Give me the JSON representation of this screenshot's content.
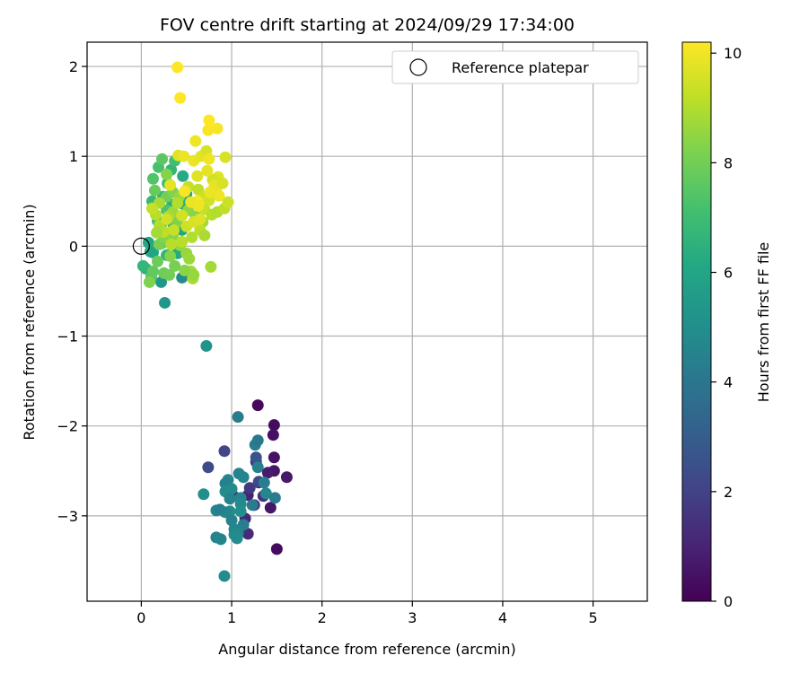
{
  "chart_data": {
    "type": "scatter",
    "title": "FOV centre drift starting at 2024/09/29 17:34:00",
    "xlabel": "Angular distance from reference (arcmin)",
    "ylabel": "Rotation from reference (arcmin)",
    "xlim": [
      -0.6,
      5.6
    ],
    "ylim": [
      -3.95,
      2.27
    ],
    "xticks": [
      "0",
      "1",
      "2",
      "3",
      "4",
      "5"
    ],
    "yticks": [
      "2",
      "1",
      "0",
      "−1",
      "−2",
      "−3"
    ],
    "grid": true,
    "legend": {
      "placement": "top-right",
      "entries": [
        "Reference platepar"
      ]
    },
    "reference_point": {
      "x": 0,
      "y": 0
    },
    "colorbar": {
      "label": "Hours from first FF file",
      "range": [
        0,
        10.2
      ],
      "ticks": [
        "0",
        "2",
        "4",
        "6",
        "8",
        "10"
      ],
      "colormap": "viridis"
    },
    "points": [
      {
        "x": 1.29,
        "y": -1.77,
        "c": 0.2
      },
      {
        "x": 1.47,
        "y": -1.99,
        "c": 0.3
      },
      {
        "x": 1.46,
        "y": -2.1,
        "c": 0.4
      },
      {
        "x": 1.47,
        "y": -2.35,
        "c": 0.5
      },
      {
        "x": 1.47,
        "y": -2.5,
        "c": 0.6
      },
      {
        "x": 1.61,
        "y": -2.57,
        "c": 0.7
      },
      {
        "x": 1.4,
        "y": -2.52,
        "c": 0.8
      },
      {
        "x": 1.3,
        "y": -2.63,
        "c": 0.9
      },
      {
        "x": 1.18,
        "y": -2.77,
        "c": 1.0
      },
      {
        "x": 1.15,
        "y": -3.03,
        "c": 1.1
      },
      {
        "x": 1.18,
        "y": -3.2,
        "c": 1.2
      },
      {
        "x": 1.5,
        "y": -3.37,
        "c": 0.3
      },
      {
        "x": 1.43,
        "y": -2.91,
        "c": 0.6
      },
      {
        "x": 1.25,
        "y": -2.88,
        "c": 1.3
      },
      {
        "x": 1.02,
        "y": -2.78,
        "c": 1.4
      },
      {
        "x": 1.27,
        "y": -2.4,
        "c": 1.6
      },
      {
        "x": 1.2,
        "y": -2.69,
        "c": 1.7
      },
      {
        "x": 1.35,
        "y": -2.78,
        "c": 1.5
      },
      {
        "x": 0.92,
        "y": -2.28,
        "c": 2.1
      },
      {
        "x": 0.74,
        "y": -2.46,
        "c": 2.3
      },
      {
        "x": 1.27,
        "y": -2.35,
        "c": 2.6
      },
      {
        "x": 1.3,
        "y": -2.62,
        "c": 2.2
      },
      {
        "x": 1.07,
        "y": -1.9,
        "c": 4.2
      },
      {
        "x": 1.26,
        "y": -2.21,
        "c": 4.3
      },
      {
        "x": 1.29,
        "y": -2.16,
        "c": 4.1
      },
      {
        "x": 1.29,
        "y": -2.46,
        "c": 4.4
      },
      {
        "x": 1.08,
        "y": -2.53,
        "c": 4.5
      },
      {
        "x": 1.13,
        "y": -2.57,
        "c": 4.6
      },
      {
        "x": 0.96,
        "y": -2.6,
        "c": 4.7
      },
      {
        "x": 0.93,
        "y": -2.64,
        "c": 4.4
      },
      {
        "x": 1.0,
        "y": -2.7,
        "c": 4.8
      },
      {
        "x": 0.93,
        "y": -2.73,
        "c": 4.9
      },
      {
        "x": 0.69,
        "y": -2.76,
        "c": 5.0
      },
      {
        "x": 0.98,
        "y": -2.81,
        "c": 4.5
      },
      {
        "x": 1.1,
        "y": -2.8,
        "c": 4.6
      },
      {
        "x": 1.36,
        "y": -2.63,
        "c": 4.3
      },
      {
        "x": 1.38,
        "y": -2.75,
        "c": 4.7
      },
      {
        "x": 1.48,
        "y": -2.8,
        "c": 4.2
      },
      {
        "x": 1.1,
        "y": -2.87,
        "c": 4.8
      },
      {
        "x": 1.1,
        "y": -2.95,
        "c": 5.0
      },
      {
        "x": 0.98,
        "y": -2.95,
        "c": 4.9
      },
      {
        "x": 0.93,
        "y": -2.96,
        "c": 4.6
      },
      {
        "x": 0.83,
        "y": -2.94,
        "c": 4.7
      },
      {
        "x": 0.87,
        "y": -2.93,
        "c": 4.4
      },
      {
        "x": 1.0,
        "y": -3.05,
        "c": 4.5
      },
      {
        "x": 1.13,
        "y": -3.1,
        "c": 4.3
      },
      {
        "x": 1.03,
        "y": -3.15,
        "c": 4.6
      },
      {
        "x": 1.07,
        "y": -3.19,
        "c": 4.7
      },
      {
        "x": 1.03,
        "y": -3.21,
        "c": 4.8
      },
      {
        "x": 1.06,
        "y": -3.25,
        "c": 4.9
      },
      {
        "x": 0.83,
        "y": -3.24,
        "c": 4.5
      },
      {
        "x": 0.88,
        "y": -3.26,
        "c": 4.6
      },
      {
        "x": 0.92,
        "y": -3.67,
        "c": 4.9
      },
      {
        "x": 1.23,
        "y": -2.88,
        "c": 4.2
      },
      {
        "x": 0.72,
        "y": -1.11,
        "c": 5.2
      },
      {
        "x": 0.26,
        "y": -0.63,
        "c": 5.3
      },
      {
        "x": 0.45,
        "y": -0.35,
        "c": 4.9
      },
      {
        "x": 0.22,
        "y": -0.4,
        "c": 5.4
      },
      {
        "x": 0.05,
        "y": -0.25,
        "c": 6.5
      },
      {
        "x": 0.02,
        "y": -0.22,
        "c": 6.7
      },
      {
        "x": 0.1,
        "y": -0.06,
        "c": 6.3
      },
      {
        "x": 0.13,
        "y": -0.07,
        "c": 6.0
      },
      {
        "x": 0.08,
        "y": 0.04,
        "c": 6.1
      },
      {
        "x": 0.22,
        "y": 0.03,
        "c": 6.4
      },
      {
        "x": 0.28,
        "y": -0.1,
        "c": 6.6
      },
      {
        "x": 0.4,
        "y": -0.08,
        "c": 6.2
      },
      {
        "x": 0.31,
        "y": 0.08,
        "c": 6.8
      },
      {
        "x": 0.22,
        "y": 0.2,
        "c": 6.5
      },
      {
        "x": 0.45,
        "y": 0.18,
        "c": 6.0
      },
      {
        "x": 0.35,
        "y": 0.25,
        "c": 6.9
      },
      {
        "x": 0.18,
        "y": 0.28,
        "c": 7.0
      },
      {
        "x": 0.12,
        "y": 0.5,
        "c": 6.8
      },
      {
        "x": 0.24,
        "y": 0.55,
        "c": 6.6
      },
      {
        "x": 0.34,
        "y": 0.46,
        "c": 6.3
      },
      {
        "x": 0.46,
        "y": 0.47,
        "c": 6.4
      },
      {
        "x": 0.5,
        "y": 0.58,
        "c": 6.0
      },
      {
        "x": 0.46,
        "y": 0.78,
        "c": 6.2
      },
      {
        "x": 0.33,
        "y": 0.85,
        "c": 6.7
      },
      {
        "x": 0.37,
        "y": 0.95,
        "c": 7.1
      },
      {
        "x": 0.29,
        "y": 0.7,
        "c": 7.0
      },
      {
        "x": 0.19,
        "y": 0.88,
        "c": 7.2
      },
      {
        "x": 0.13,
        "y": 0.75,
        "c": 7.4
      },
      {
        "x": 0.23,
        "y": 0.97,
        "c": 7.6
      },
      {
        "x": 0.15,
        "y": 0.62,
        "c": 7.8
      },
      {
        "x": 0.28,
        "y": 0.4,
        "c": 7.3
      },
      {
        "x": 0.11,
        "y": -0.34,
        "c": 7.5
      },
      {
        "x": 0.13,
        "y": -0.28,
        "c": 7.7
      },
      {
        "x": 0.25,
        "y": -0.3,
        "c": 7.9
      },
      {
        "x": 0.31,
        "y": -0.32,
        "c": 8.0
      },
      {
        "x": 0.09,
        "y": -0.4,
        "c": 8.2
      },
      {
        "x": 0.18,
        "y": -0.17,
        "c": 7.9
      },
      {
        "x": 0.2,
        "y": 0.02,
        "c": 8.1
      },
      {
        "x": 0.25,
        "y": 0.1,
        "c": 8.3
      },
      {
        "x": 0.35,
        "y": 0.12,
        "c": 8.4
      },
      {
        "x": 0.4,
        "y": 0.27,
        "c": 8.2
      },
      {
        "x": 0.43,
        "y": 0.01,
        "c": 8.5
      },
      {
        "x": 0.5,
        "y": -0.08,
        "c": 8.6
      },
      {
        "x": 0.53,
        "y": -0.14,
        "c": 8.7
      },
      {
        "x": 0.55,
        "y": -0.28,
        "c": 8.8
      },
      {
        "x": 0.57,
        "y": -0.36,
        "c": 8.9
      },
      {
        "x": 0.58,
        "y": -0.32,
        "c": 8.6
      },
      {
        "x": 0.48,
        "y": -0.27,
        "c": 8.4
      },
      {
        "x": 0.37,
        "y": -0.22,
        "c": 8.1
      },
      {
        "x": 0.32,
        "y": -0.11,
        "c": 8.3
      },
      {
        "x": 0.77,
        "y": -0.23,
        "c": 8.8
      },
      {
        "x": 0.28,
        "y": 0.55,
        "c": 8.0
      },
      {
        "x": 0.35,
        "y": 0.6,
        "c": 8.2
      },
      {
        "x": 0.42,
        "y": 0.55,
        "c": 8.6
      },
      {
        "x": 0.28,
        "y": 0.8,
        "c": 8.3
      },
      {
        "x": 0.35,
        "y": 0.38,
        "c": 8.7
      },
      {
        "x": 0.3,
        "y": 0.33,
        "c": 8.9
      },
      {
        "x": 0.52,
        "y": 0.4,
        "c": 8.5
      },
      {
        "x": 0.6,
        "y": 0.33,
        "c": 8.4
      },
      {
        "x": 0.68,
        "y": 0.27,
        "c": 8.8
      },
      {
        "x": 0.56,
        "y": 0.1,
        "c": 9.0
      },
      {
        "x": 0.45,
        "y": 0.05,
        "c": 9.1
      },
      {
        "x": 0.65,
        "y": 0.18,
        "c": 9.2
      },
      {
        "x": 0.7,
        "y": 0.12,
        "c": 8.9
      },
      {
        "x": 0.52,
        "y": 0.66,
        "c": 9.3
      },
      {
        "x": 0.63,
        "y": 0.63,
        "c": 9.2
      },
      {
        "x": 0.69,
        "y": 0.55,
        "c": 9.4
      },
      {
        "x": 0.75,
        "y": 0.51,
        "c": 9.5
      },
      {
        "x": 0.7,
        "y": 0.41,
        "c": 9.3
      },
      {
        "x": 0.78,
        "y": 0.35,
        "c": 9.1
      },
      {
        "x": 0.84,
        "y": 0.38,
        "c": 9.0
      },
      {
        "x": 0.92,
        "y": 0.42,
        "c": 9.2
      },
      {
        "x": 0.96,
        "y": 0.49,
        "c": 9.4
      },
      {
        "x": 0.93,
        "y": 0.99,
        "c": 9.6
      },
      {
        "x": 0.85,
        "y": 0.77,
        "c": 9.7
      },
      {
        "x": 0.79,
        "y": 0.74,
        "c": 9.5
      },
      {
        "x": 0.73,
        "y": 0.84,
        "c": 9.8
      },
      {
        "x": 0.62,
        "y": 0.78,
        "c": 9.7
      },
      {
        "x": 0.58,
        "y": 0.95,
        "c": 9.9
      },
      {
        "x": 0.66,
        "y": 1.0,
        "c": 9.8
      },
      {
        "x": 0.72,
        "y": 1.06,
        "c": 9.6
      },
      {
        "x": 0.75,
        "y": 0.97,
        "c": 10.0
      },
      {
        "x": 0.6,
        "y": 1.17,
        "c": 10.0
      },
      {
        "x": 0.74,
        "y": 1.29,
        "c": 10.1
      },
      {
        "x": 0.75,
        "y": 1.4,
        "c": 10.2
      },
      {
        "x": 0.84,
        "y": 1.31,
        "c": 10.1
      },
      {
        "x": 0.43,
        "y": 1.65,
        "c": 10.2
      },
      {
        "x": 0.4,
        "y": 1.99,
        "c": 10.2
      },
      {
        "x": 0.41,
        "y": 1.01,
        "c": 9.7
      },
      {
        "x": 0.47,
        "y": 1.0,
        "c": 9.9
      },
      {
        "x": 0.83,
        "y": 0.61,
        "c": 10.0
      },
      {
        "x": 0.81,
        "y": 0.68,
        "c": 9.8
      },
      {
        "x": 0.9,
        "y": 0.7,
        "c": 9.6
      },
      {
        "x": 0.86,
        "y": 0.56,
        "c": 10.0
      },
      {
        "x": 0.76,
        "y": 0.6,
        "c": 9.9
      },
      {
        "x": 0.62,
        "y": 0.5,
        "c": 10.1
      },
      {
        "x": 0.55,
        "y": 0.49,
        "c": 9.9
      },
      {
        "x": 0.63,
        "y": 0.45,
        "c": 10.0
      },
      {
        "x": 0.48,
        "y": 0.61,
        "c": 10.1
      },
      {
        "x": 0.32,
        "y": 0.68,
        "c": 9.8
      },
      {
        "x": 0.25,
        "y": 0.16,
        "c": 9.2
      },
      {
        "x": 0.2,
        "y": 0.23,
        "c": 9.0
      },
      {
        "x": 0.17,
        "y": 0.15,
        "c": 8.8
      },
      {
        "x": 0.33,
        "y": 0.02,
        "c": 9.1
      },
      {
        "x": 0.36,
        "y": 0.18,
        "c": 9.3
      },
      {
        "x": 0.4,
        "y": 0.48,
        "c": 9.0
      },
      {
        "x": 0.2,
        "y": 0.48,
        "c": 8.9
      },
      {
        "x": 0.16,
        "y": 0.35,
        "c": 9.1
      },
      {
        "x": 0.12,
        "y": 0.42,
        "c": 9.3
      },
      {
        "x": 0.45,
        "y": 0.34,
        "c": 9.5
      },
      {
        "x": 0.5,
        "y": 0.22,
        "c": 9.4
      },
      {
        "x": 0.58,
        "y": 0.27,
        "c": 9.6
      },
      {
        "x": 0.65,
        "y": 0.3,
        "c": 9.7
      },
      {
        "x": 0.28,
        "y": 0.3,
        "c": 9.5
      }
    ]
  }
}
